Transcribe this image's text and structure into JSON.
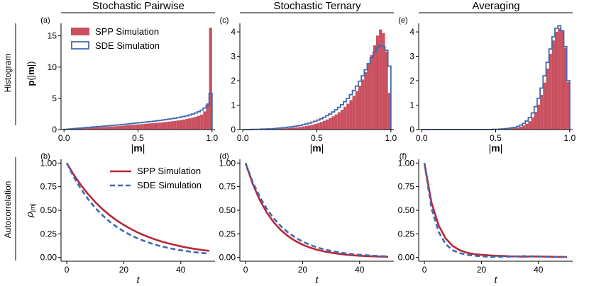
{
  "figure": {
    "column_titles": [
      "Stochastic Pairwise",
      "Stochastic Ternary",
      "Averaging"
    ],
    "row_labels": [
      "Histogram",
      "Autocorrelation"
    ],
    "colors": {
      "spp": "#c9505f",
      "spp_line": "#b8273a",
      "sde": "#4169b0",
      "axis": "#000000"
    }
  },
  "chart_data": [
    {
      "panel": "(a)",
      "type": "bar",
      "subtype": "histogram",
      "xlabel": "|m|",
      "ylabel": "p(|m|)",
      "xlim": [
        -0.02,
        1.02
      ],
      "ylim": [
        0,
        17
      ],
      "xticks": [
        0.0,
        0.5,
        1.0
      ],
      "xticklabels": [
        "0.0",
        "0.5",
        "1.0"
      ],
      "yticks": [
        0,
        5,
        10,
        15
      ],
      "yticklabels": [
        "0",
        "5",
        "10",
        "15"
      ],
      "legend": {
        "position": "top-left",
        "entries": [
          "SPP Simulation",
          "SDE Simulation"
        ]
      },
      "bin_edges": [
        0.0,
        0.02,
        0.04,
        0.06,
        0.08,
        0.1,
        0.12,
        0.14,
        0.16,
        0.18,
        0.2,
        0.22,
        0.24,
        0.26,
        0.28,
        0.3,
        0.32,
        0.34,
        0.36,
        0.38,
        0.4,
        0.42,
        0.44,
        0.46,
        0.48,
        0.5,
        0.52,
        0.54,
        0.56,
        0.58,
        0.6,
        0.62,
        0.64,
        0.66,
        0.68,
        0.7,
        0.72,
        0.74,
        0.76,
        0.78,
        0.8,
        0.82,
        0.84,
        0.86,
        0.88,
        0.9,
        0.92,
        0.94,
        0.96,
        0.98,
        1.0
      ],
      "series": [
        {
          "name": "SPP Simulation",
          "style": "bars",
          "values": [
            0.02,
            0.05,
            0.08,
            0.11,
            0.14,
            0.17,
            0.2,
            0.23,
            0.26,
            0.29,
            0.32,
            0.35,
            0.38,
            0.41,
            0.44,
            0.47,
            0.5,
            0.53,
            0.56,
            0.6,
            0.64,
            0.68,
            0.72,
            0.76,
            0.8,
            0.84,
            0.88,
            0.92,
            0.96,
            1.0,
            1.04,
            1.08,
            1.12,
            1.17,
            1.22,
            1.27,
            1.33,
            1.39,
            1.45,
            1.52,
            1.6,
            1.7,
            1.8,
            1.92,
            2.05,
            2.2,
            2.4,
            2.9,
            4.2,
            16.3
          ]
        },
        {
          "name": "SDE Simulation",
          "style": "step",
          "values": [
            0.03,
            0.07,
            0.11,
            0.15,
            0.19,
            0.23,
            0.27,
            0.31,
            0.35,
            0.39,
            0.43,
            0.47,
            0.51,
            0.55,
            0.59,
            0.63,
            0.67,
            0.71,
            0.75,
            0.79,
            0.84,
            0.89,
            0.94,
            0.99,
            1.04,
            1.09,
            1.14,
            1.19,
            1.24,
            1.29,
            1.35,
            1.41,
            1.47,
            1.53,
            1.6,
            1.67,
            1.74,
            1.82,
            1.9,
            1.99,
            2.09,
            2.2,
            2.33,
            2.48,
            2.65,
            2.85,
            3.1,
            3.45,
            3.9,
            5.8
          ]
        }
      ]
    },
    {
      "panel": "(c)",
      "type": "bar",
      "subtype": "histogram",
      "xlabel": "|m|",
      "ylabel": "",
      "xlim": [
        -0.02,
        1.02
      ],
      "ylim": [
        0,
        4.35
      ],
      "xticks": [
        0.0,
        0.5,
        1.0
      ],
      "xticklabels": [
        "0.0",
        "0.5",
        "1.0"
      ],
      "yticks": [
        0,
        1,
        2,
        3,
        4
      ],
      "yticklabels": [
        "0",
        "1",
        "2",
        "3",
        "4"
      ],
      "bin_edges": [
        0.0,
        0.02,
        0.04,
        0.06,
        0.08,
        0.1,
        0.12,
        0.14,
        0.16,
        0.18,
        0.2,
        0.22,
        0.24,
        0.26,
        0.28,
        0.3,
        0.32,
        0.34,
        0.36,
        0.38,
        0.4,
        0.42,
        0.44,
        0.46,
        0.48,
        0.5,
        0.52,
        0.54,
        0.56,
        0.58,
        0.6,
        0.62,
        0.64,
        0.66,
        0.68,
        0.7,
        0.72,
        0.74,
        0.76,
        0.78,
        0.8,
        0.82,
        0.84,
        0.86,
        0.88,
        0.9,
        0.92,
        0.94,
        0.96,
        0.98,
        1.0
      ],
      "series": [
        {
          "name": "SPP Simulation",
          "style": "bars",
          "values": [
            0.0,
            0.0,
            0.0,
            0.0,
            0.0,
            0.01,
            0.01,
            0.01,
            0.01,
            0.02,
            0.02,
            0.03,
            0.03,
            0.04,
            0.05,
            0.06,
            0.07,
            0.08,
            0.09,
            0.11,
            0.13,
            0.15,
            0.17,
            0.2,
            0.23,
            0.27,
            0.31,
            0.36,
            0.41,
            0.47,
            0.54,
            0.62,
            0.71,
            0.81,
            0.93,
            1.06,
            1.21,
            1.38,
            1.57,
            1.8,
            2.05,
            2.35,
            2.68,
            3.05,
            3.45,
            3.85,
            4.1,
            3.95,
            3.2,
            1.5
          ]
        },
        {
          "name": "SDE Simulation",
          "style": "step",
          "values": [
            0.0,
            0.0,
            0.0,
            0.01,
            0.01,
            0.01,
            0.02,
            0.02,
            0.03,
            0.03,
            0.04,
            0.05,
            0.06,
            0.07,
            0.08,
            0.1,
            0.11,
            0.13,
            0.15,
            0.17,
            0.2,
            0.23,
            0.26,
            0.3,
            0.34,
            0.39,
            0.44,
            0.5,
            0.57,
            0.64,
            0.72,
            0.81,
            0.91,
            1.02,
            1.14,
            1.28,
            1.43,
            1.6,
            1.78,
            1.98,
            2.2,
            2.45,
            2.7,
            2.95,
            3.18,
            3.35,
            3.45,
            3.4,
            3.25,
            2.6
          ]
        }
      ]
    },
    {
      "panel": "(e)",
      "type": "bar",
      "subtype": "histogram",
      "xlabel": "|m|",
      "ylabel": "",
      "xlim": [
        -0.02,
        1.02
      ],
      "ylim": [
        0,
        4.35
      ],
      "xticks": [
        0.0,
        0.5,
        1.0
      ],
      "xticklabels": [
        "0.0",
        "0.5",
        "1.0"
      ],
      "yticks": [
        0,
        1,
        2,
        3,
        4
      ],
      "yticklabels": [
        "0",
        "1",
        "2",
        "3",
        "4"
      ],
      "bin_edges": [
        0.0,
        0.02,
        0.04,
        0.06,
        0.08,
        0.1,
        0.12,
        0.14,
        0.16,
        0.18,
        0.2,
        0.22,
        0.24,
        0.26,
        0.28,
        0.3,
        0.32,
        0.34,
        0.36,
        0.38,
        0.4,
        0.42,
        0.44,
        0.46,
        0.48,
        0.5,
        0.52,
        0.54,
        0.56,
        0.58,
        0.6,
        0.62,
        0.64,
        0.66,
        0.68,
        0.7,
        0.72,
        0.74,
        0.76,
        0.78,
        0.8,
        0.82,
        0.84,
        0.86,
        0.88,
        0.9,
        0.92,
        0.94,
        0.96,
        0.98,
        1.0
      ],
      "series": [
        {
          "name": "SPP Simulation",
          "style": "bars",
          "values": [
            0.0,
            0.0,
            0.0,
            0.0,
            0.0,
            0.0,
            0.0,
            0.0,
            0.0,
            0.0,
            0.0,
            0.0,
            0.0,
            0.0,
            0.0,
            0.0,
            0.0,
            0.0,
            0.0,
            0.0,
            0.0,
            0.0,
            0.0,
            0.0,
            0.0,
            0.01,
            0.01,
            0.02,
            0.02,
            0.03,
            0.04,
            0.06,
            0.08,
            0.12,
            0.17,
            0.24,
            0.34,
            0.5,
            0.72,
            1.02,
            1.42,
            1.92,
            2.5,
            3.1,
            3.65,
            4.0,
            4.15,
            4.05,
            3.35,
            1.95
          ]
        },
        {
          "name": "SDE Simulation",
          "style": "step",
          "values": [
            0.0,
            0.0,
            0.0,
            0.0,
            0.0,
            0.0,
            0.0,
            0.0,
            0.0,
            0.0,
            0.0,
            0.0,
            0.0,
            0.0,
            0.0,
            0.0,
            0.0,
            0.0,
            0.0,
            0.0,
            0.0,
            0.0,
            0.0,
            0.0,
            0.01,
            0.01,
            0.02,
            0.03,
            0.04,
            0.05,
            0.07,
            0.09,
            0.13,
            0.18,
            0.25,
            0.35,
            0.49,
            0.68,
            0.94,
            1.28,
            1.7,
            2.2,
            2.75,
            3.3,
            3.8,
            4.15,
            4.25,
            4.05,
            3.4,
            2.0
          ]
        }
      ]
    },
    {
      "panel": "(b)",
      "type": "line",
      "xlabel": "t",
      "ylabel": "ρ_|m|",
      "xlim": [
        -2,
        52
      ],
      "ylim": [
        -0.04,
        1.04
      ],
      "xticks": [
        0,
        20,
        40
      ],
      "xticklabels": [
        "0",
        "20",
        "40"
      ],
      "yticks": [
        0.0,
        0.25,
        0.5,
        0.75,
        1.0
      ],
      "yticklabels": [
        "0.00",
        "0.25",
        "0.50",
        "0.75",
        "1.00"
      ],
      "legend": {
        "position": "top-right",
        "entries": [
          "SPP Simulation",
          "SDE Simulation"
        ]
      },
      "x": [
        0,
        2.5,
        5,
        7.5,
        10,
        12.5,
        15,
        17.5,
        20,
        22.5,
        25,
        27.5,
        30,
        32.5,
        35,
        37.5,
        40,
        42.5,
        45,
        47.5,
        50
      ],
      "series": [
        {
          "name": "SPP Simulation",
          "style": "solid",
          "values": [
            1.0,
            0.875,
            0.766,
            0.67,
            0.586,
            0.513,
            0.449,
            0.393,
            0.344,
            0.301,
            0.263,
            0.23,
            0.202,
            0.176,
            0.154,
            0.135,
            0.118,
            0.103,
            0.09,
            0.079,
            0.069
          ]
        },
        {
          "name": "SDE Simulation",
          "style": "dashed",
          "values": [
            1.0,
            0.851,
            0.725,
            0.617,
            0.525,
            0.447,
            0.381,
            0.324,
            0.276,
            0.235,
            0.2,
            0.17,
            0.145,
            0.123,
            0.105,
            0.089,
            0.076,
            0.065,
            0.055,
            0.047,
            0.04
          ]
        }
      ]
    },
    {
      "panel": "(d)",
      "type": "line",
      "xlabel": "t",
      "ylabel": "",
      "xlim": [
        -2,
        52
      ],
      "ylim": [
        -0.04,
        1.04
      ],
      "xticks": [
        0,
        20,
        40
      ],
      "xticklabels": [
        "0",
        "20",
        "40"
      ],
      "yticks": [
        0.0,
        0.25,
        0.5,
        0.75,
        1.0
      ],
      "yticklabels": [
        "0.00",
        "0.25",
        "0.50",
        "0.75",
        "1.00"
      ],
      "x": [
        0,
        2.5,
        5,
        7.5,
        10,
        12.5,
        15,
        17.5,
        20,
        22.5,
        25,
        27.5,
        30,
        32.5,
        35,
        37.5,
        40,
        42.5,
        45,
        47.5,
        50
      ],
      "series": [
        {
          "name": "SPP Simulation",
          "style": "solid",
          "values": [
            1.0,
            0.78,
            0.607,
            0.472,
            0.368,
            0.286,
            0.223,
            0.174,
            0.135,
            0.105,
            0.082,
            0.064,
            0.05,
            0.039,
            0.03,
            0.023,
            0.018,
            0.014,
            0.011,
            0.009,
            0.007
          ]
        },
        {
          "name": "SDE Simulation",
          "style": "dashed",
          "values": [
            1.0,
            0.8,
            0.64,
            0.512,
            0.41,
            0.328,
            0.262,
            0.21,
            0.168,
            0.134,
            0.107,
            0.086,
            0.069,
            0.055,
            0.044,
            0.035,
            0.028,
            0.023,
            0.018,
            0.014,
            0.012
          ]
        }
      ]
    },
    {
      "panel": "(f)",
      "type": "line",
      "xlabel": "t",
      "ylabel": "",
      "xlim": [
        -2,
        52
      ],
      "ylim": [
        -0.04,
        1.04
      ],
      "xticks": [
        0,
        20,
        40
      ],
      "xticklabels": [
        "0",
        "20",
        "40"
      ],
      "yticks": [
        0.0,
        0.25,
        0.5,
        0.75,
        1.0
      ],
      "yticklabels": [
        "0.00",
        "0.25",
        "0.50",
        "0.75",
        "1.00"
      ],
      "x": [
        0,
        2.5,
        5,
        7.5,
        10,
        12.5,
        15,
        17.5,
        20,
        22.5,
        25,
        27.5,
        30,
        32.5,
        35,
        37.5,
        40,
        42.5,
        45,
        47.5,
        50
      ],
      "series": [
        {
          "name": "SPP Simulation",
          "style": "solid",
          "values": [
            1.0,
            0.58,
            0.34,
            0.2,
            0.12,
            0.075,
            0.05,
            0.035,
            0.028,
            0.022,
            0.018,
            0.016,
            0.012,
            0.01,
            0.008,
            0.01,
            0.011,
            0.009,
            0.007,
            0.006,
            0.005
          ]
        },
        {
          "name": "SDE Simulation",
          "style": "dashed",
          "values": [
            1.0,
            0.52,
            0.27,
            0.14,
            0.075,
            0.045,
            0.028,
            0.018,
            0.012,
            0.008,
            0.006,
            0.007,
            0.009,
            0.012,
            0.014,
            0.012,
            0.01,
            0.008,
            0.006,
            0.005,
            0.004
          ]
        }
      ]
    }
  ]
}
